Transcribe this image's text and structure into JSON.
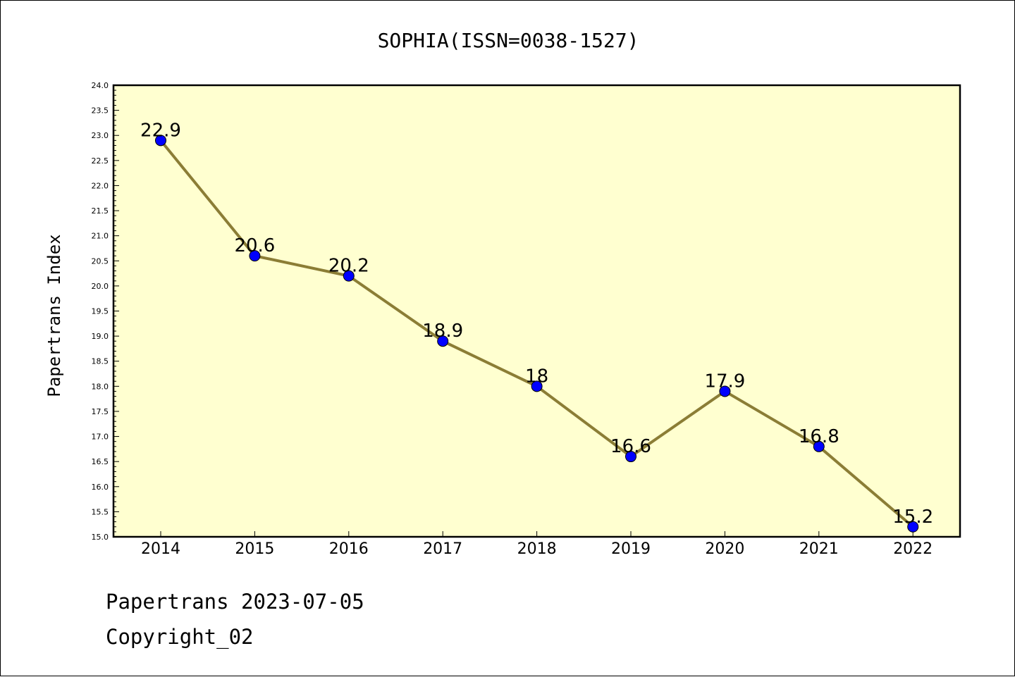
{
  "footer": {
    "line1": "Papertrans 2023-07-05",
    "line2": "Copyright_02"
  },
  "chart_data": {
    "type": "line",
    "title": "SOPHIA(ISSN=0038-1527)",
    "xlabel": "",
    "ylabel": "Papertrans Index",
    "categories": [
      "2014",
      "2015",
      "2016",
      "2017",
      "2018",
      "2019",
      "2020",
      "2021",
      "2022"
    ],
    "series": [
      {
        "values": [
          22.9,
          20.6,
          20.2,
          18.9,
          18.0,
          16.6,
          17.9,
          16.8,
          15.2
        ],
        "data_labels": [
          "22.9",
          "20.6",
          "20.2",
          "18.9",
          "18",
          "16.6",
          "17.9",
          "16.8",
          "15.2"
        ],
        "line_color": "#8b7d35",
        "marker_color": "#0000ff"
      }
    ],
    "ylim": [
      15.0,
      24.0
    ],
    "yticks": [
      "15.0",
      "15.5",
      "16.0",
      "16.5",
      "17.0",
      "17.5",
      "18.0",
      "18.5",
      "19.0",
      "19.5",
      "20.0",
      "20.5",
      "21.0",
      "21.5",
      "22.0",
      "22.5",
      "23.0",
      "23.5",
      "24.0"
    ],
    "plot_background": "#ffffd0",
    "grid": false,
    "legend": "none"
  }
}
